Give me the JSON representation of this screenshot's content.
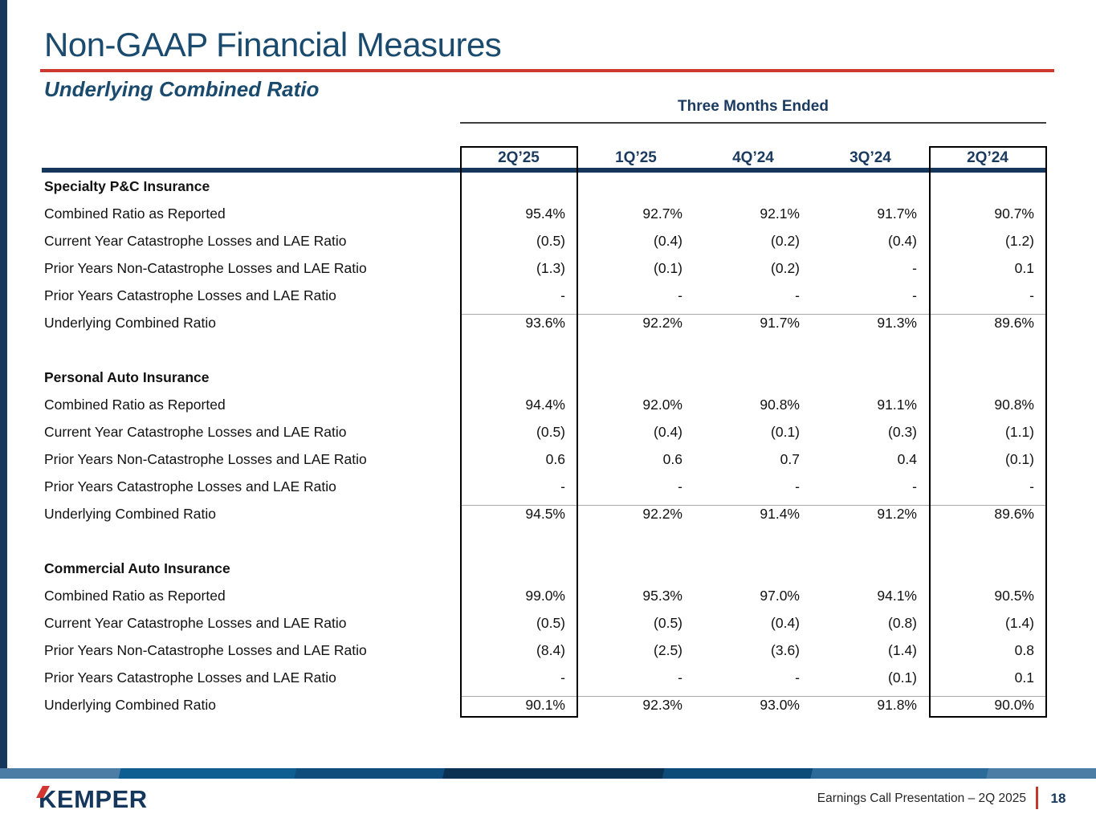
{
  "slide": {
    "title": "Non-GAAP Financial Measures",
    "subtitle": "Underlying Combined Ratio"
  },
  "table": {
    "period_header": "Three Months Ended",
    "columns": [
      "2Q’25",
      "1Q’25",
      "4Q’24",
      "3Q’24",
      "2Q’24"
    ],
    "sections": [
      {
        "name": "Specialty P&C Insurance",
        "rows": [
          {
            "label": "Combined Ratio as Reported",
            "values": [
              "95.4%",
              "92.7%",
              "92.1%",
              "91.7%",
              "90.7%"
            ]
          },
          {
            "label": "Current Year Catastrophe Losses and LAE Ratio",
            "values": [
              "(0.5)",
              "(0.4)",
              "(0.2)",
              "(0.4)",
              "(1.2)"
            ]
          },
          {
            "label": "Prior Years Non-Catastrophe Losses and LAE Ratio",
            "values": [
              "(1.3)",
              "(0.1)",
              "(0.2)",
              "-",
              "0.1"
            ]
          },
          {
            "label": "Prior Years Catastrophe Losses and LAE Ratio",
            "values": [
              "-",
              "-",
              "-",
              "-",
              "-"
            ]
          },
          {
            "label": "Underlying Combined Ratio",
            "values": [
              "93.6%",
              "92.2%",
              "91.7%",
              "91.3%",
              "89.6%"
            ]
          }
        ]
      },
      {
        "name": "Personal Auto Insurance",
        "rows": [
          {
            "label": "Combined Ratio as Reported",
            "values": [
              "94.4%",
              "92.0%",
              "90.8%",
              "91.1%",
              "90.8%"
            ]
          },
          {
            "label": "Current Year Catastrophe Losses and LAE Ratio",
            "values": [
              "(0.5)",
              "(0.4)",
              "(0.1)",
              "(0.3)",
              "(1.1)"
            ]
          },
          {
            "label": "Prior Years Non-Catastrophe Losses and LAE Ratio",
            "values": [
              "0.6",
              "0.6",
              "0.7",
              "0.4",
              "(0.1)"
            ]
          },
          {
            "label": "Prior Years Catastrophe Losses and LAE Ratio",
            "values": [
              "-",
              "-",
              "-",
              "-",
              "-"
            ]
          },
          {
            "label": "Underlying Combined Ratio",
            "values": [
              "94.5%",
              "92.2%",
              "91.4%",
              "91.2%",
              "89.6%"
            ]
          }
        ]
      },
      {
        "name": "Commercial Auto Insurance",
        "rows": [
          {
            "label": "Combined Ratio as Reported",
            "values": [
              "99.0%",
              "95.3%",
              "97.0%",
              "94.1%",
              "90.5%"
            ]
          },
          {
            "label": "Current Year Catastrophe Losses and LAE Ratio",
            "values": [
              "(0.5)",
              "(0.5)",
              "(0.4)",
              "(0.8)",
              "(1.4)"
            ]
          },
          {
            "label": "Prior Years Non-Catastrophe Losses and LAE Ratio",
            "values": [
              "(8.4)",
              "(2.5)",
              "(3.6)",
              "(1.4)",
              "0.8"
            ]
          },
          {
            "label": "Prior Years Catastrophe Losses and LAE Ratio",
            "values": [
              "-",
              "-",
              "-",
              "(0.1)",
              "0.1"
            ]
          },
          {
            "label": "Underlying Combined Ratio",
            "values": [
              "90.1%",
              "92.3%",
              "93.0%",
              "91.8%",
              "90.0%"
            ]
          }
        ]
      }
    ]
  },
  "footer": {
    "brand": "KEMPER",
    "caption": "Earnings Call Presentation – 2Q 2025",
    "page": "18"
  },
  "colors": {
    "brand_navy": "#16375c",
    "brand_red": "#cd3a2d",
    "title_blue": "#1a4a6e"
  }
}
